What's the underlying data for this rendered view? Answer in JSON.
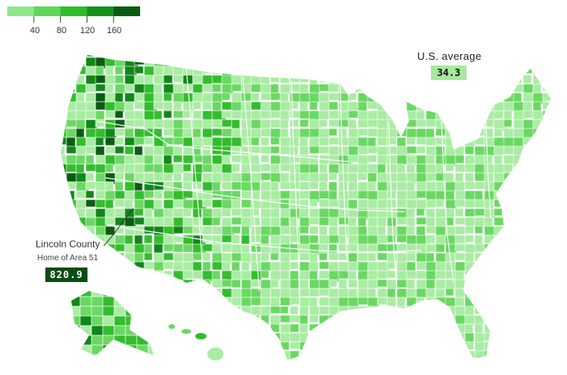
{
  "legend": {
    "colors": [
      "#8ee88a",
      "#5fd85a",
      "#2fbd2a",
      "#15931a",
      "#0b5c12"
    ],
    "tick_labels": [
      "40",
      "80",
      "120",
      "160"
    ]
  },
  "us_average": {
    "label": "U.S. average",
    "value": "34.3"
  },
  "callout": {
    "title": "Lincoln County",
    "subtitle": "Home of Area 51",
    "value": "820.9"
  },
  "map_colors": {
    "land_light": "#a9eca3",
    "land_mid": "#6ad863",
    "land_strong": "#33bd2d",
    "land_dark": "#11861a",
    "land_darkest": "#0b5c12",
    "border": "#ffffff"
  }
}
